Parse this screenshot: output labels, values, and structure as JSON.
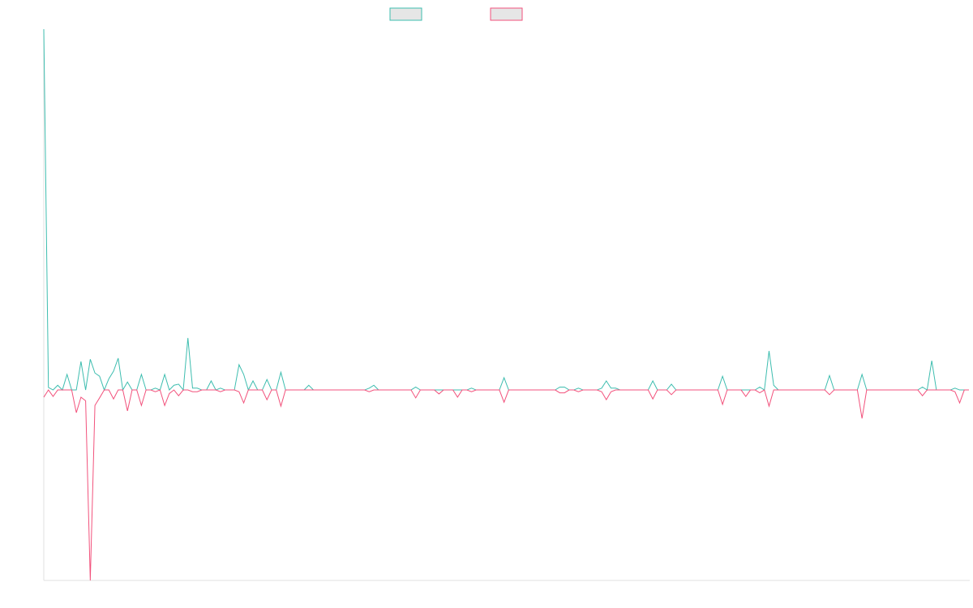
{
  "chart_data": {
    "type": "line",
    "ylim": [
      -52.8,
      100
    ],
    "series": [
      {
        "color": "#3dbdaf",
        "values": [
          100,
          0.7,
          0,
          1.3,
          0,
          4.3,
          0,
          0,
          7.9,
          0,
          8.5,
          4.7,
          3.8,
          0,
          3.1,
          5.2,
          8.8,
          0,
          2.2,
          0,
          0,
          4.3,
          0,
          0,
          0.5,
          0,
          4.3,
          0,
          1.3,
          1.6,
          0,
          14.4,
          0.5,
          0.5,
          0,
          0,
          2.5,
          0,
          0.5,
          0,
          0,
          0,
          7.0,
          4.3,
          0,
          2.5,
          0,
          0,
          2.9,
          0,
          0,
          4.9,
          0,
          0,
          0,
          0,
          0,
          1.3,
          0,
          0,
          0,
          0,
          0,
          0,
          0,
          0,
          0,
          0,
          0,
          0,
          0.5,
          1.3,
          0,
          0,
          0,
          0,
          0,
          0,
          0,
          0,
          0.8,
          0,
          0,
          0,
          0,
          0,
          0,
          0,
          0,
          0,
          0,
          0,
          0.5,
          0,
          0,
          0,
          0,
          0,
          0,
          3.4,
          0,
          0,
          0,
          0,
          0,
          0,
          0,
          0,
          0,
          0,
          0,
          0.8,
          0.8,
          0,
          0,
          0.5,
          0,
          0,
          0,
          0,
          0.5,
          2.5,
          0.5,
          0.5,
          0,
          0,
          0,
          0,
          0,
          0,
          0,
          2.5,
          0,
          0,
          0,
          1.6,
          0,
          0,
          0,
          0,
          0,
          0,
          0,
          0,
          0,
          0,
          3.8,
          0,
          0,
          0,
          0,
          0,
          0,
          0,
          0.8,
          0,
          10.8,
          1.3,
          0,
          0,
          0,
          0,
          0,
          0,
          0,
          0,
          0,
          0,
          0,
          4.0,
          0,
          0,
          0,
          0,
          0,
          0,
          4.3,
          0,
          0,
          0,
          0,
          0,
          0,
          0,
          0,
          0,
          0,
          0,
          0,
          0.8,
          0,
          8.1,
          0,
          0,
          0,
          0,
          0.5,
          0,
          0,
          0
        ]
      },
      {
        "color": "#f2527c",
        "values": [
          -2.0,
          0,
          -1.8,
          0,
          0,
          0,
          0,
          -6.3,
          -2.0,
          -3.0,
          -52.8,
          -4.3,
          -2.2,
          0,
          0,
          -2.5,
          0,
          0,
          -5.8,
          0,
          0,
          -4.3,
          0,
          0,
          -0.5,
          0,
          -4.3,
          -1.0,
          0,
          -1.6,
          0,
          0,
          -0.5,
          -0.5,
          0,
          0,
          0,
          0,
          -0.5,
          0,
          0,
          0,
          -0.5,
          -3.6,
          0,
          0,
          0,
          0,
          -2.7,
          0,
          0,
          -4.5,
          0,
          0,
          0,
          0,
          0,
          0,
          0,
          0,
          0,
          0,
          0,
          0,
          0,
          0,
          0,
          0,
          0,
          0,
          -0.5,
          0,
          0,
          0,
          0,
          0,
          0,
          0,
          0,
          0,
          -2.2,
          0,
          0,
          0,
          0,
          -1.1,
          0,
          0,
          0,
          -2.0,
          0,
          0,
          -0.5,
          0,
          0,
          0,
          0,
          0,
          0,
          -3.4,
          0,
          0,
          0,
          0,
          0,
          0,
          0,
          0,
          0,
          0,
          0,
          -0.8,
          -0.8,
          0,
          0,
          -0.5,
          0,
          0,
          0,
          0,
          -0.5,
          -2.7,
          -0.5,
          0,
          0,
          0,
          0,
          0,
          0,
          0,
          0,
          -2.5,
          0,
          0,
          0,
          -1.3,
          0,
          0,
          0,
          0,
          0,
          0,
          0,
          0,
          0,
          0,
          -4.0,
          0,
          0,
          0,
          0,
          -1.8,
          0,
          0,
          -0.8,
          0,
          -4.5,
          0,
          0,
          0,
          0,
          0,
          0,
          0,
          0,
          0,
          0,
          0,
          0,
          -1.3,
          0,
          0,
          0,
          0,
          0,
          0,
          -7.9,
          0,
          0,
          0,
          0,
          0,
          0,
          0,
          0,
          0,
          0,
          0,
          0,
          -1.6,
          0,
          0,
          0,
          0,
          0,
          0,
          -0.5,
          -3.6,
          0,
          0
        ]
      }
    ]
  }
}
